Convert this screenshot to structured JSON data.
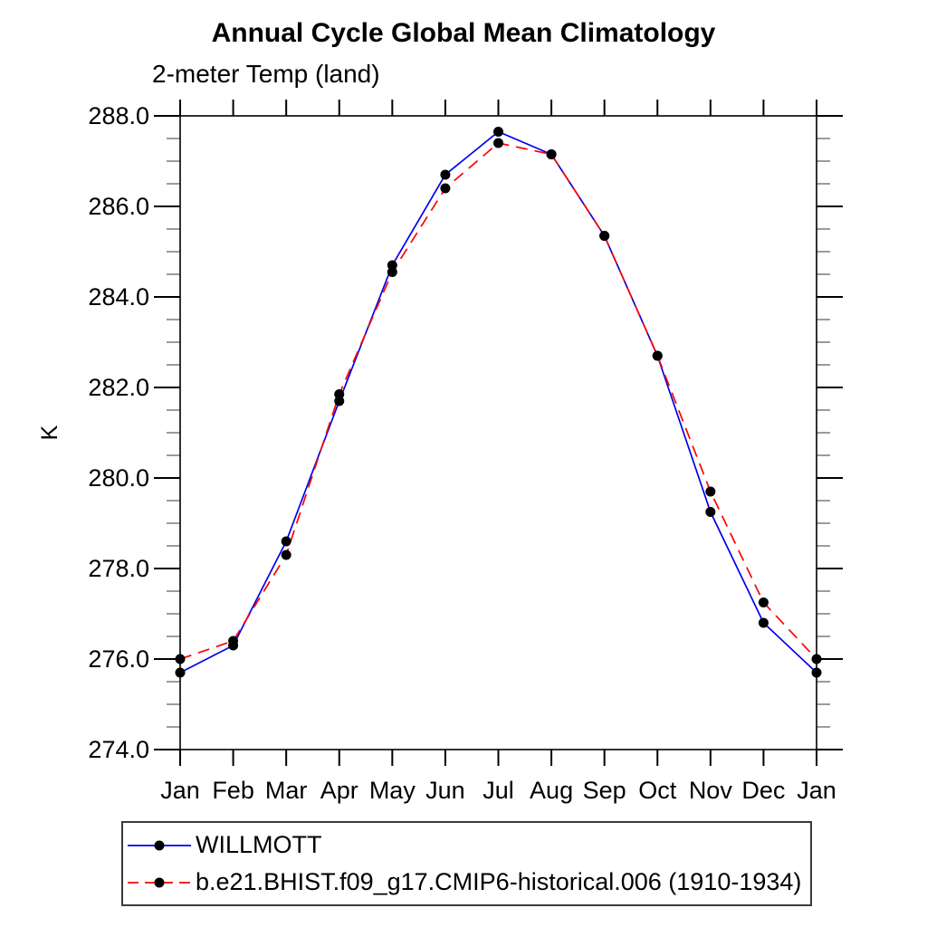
{
  "header": {
    "title": "Annual Cycle Global Mean Climatology",
    "subtitle": "2-meter Temp (land)"
  },
  "chart_data": {
    "type": "line",
    "title": "Annual Cycle Global Mean Climatology",
    "subtitle": "2-meter Temp (land)",
    "xlabel": "",
    "ylabel": "K",
    "categories": [
      "Jan",
      "Feb",
      "Mar",
      "Apr",
      "May",
      "Jun",
      "Jul",
      "Aug",
      "Sep",
      "Oct",
      "Nov",
      "Dec",
      "Jan"
    ],
    "series": [
      {
        "name": "WILLMOTT",
        "color": "#0000ee",
        "style": "solid",
        "marker": "circle",
        "marker_color": "#000000",
        "values": [
          275.7,
          276.3,
          278.6,
          281.7,
          284.7,
          286.7,
          287.65,
          287.15,
          285.35,
          282.7,
          279.25,
          276.8,
          275.7
        ]
      },
      {
        "name": "b.e21.BHIST.f09_g17.CMIP6-historical.006 (1910-1934)",
        "color": "#ff0000",
        "style": "dashed",
        "marker": "circle",
        "marker_color": "#000000",
        "values": [
          276.0,
          276.4,
          278.3,
          281.85,
          284.55,
          286.4,
          287.4,
          287.15,
          285.35,
          282.7,
          279.7,
          277.25,
          276.0
        ]
      }
    ],
    "ylim": [
      274.0,
      288.0
    ],
    "ytick_step": 2.0,
    "ytick_minor_step": 0.5,
    "ytick_labels": [
      "274.0",
      "276.0",
      "278.0",
      "280.0",
      "282.0",
      "284.0",
      "286.0",
      "288.0"
    ],
    "grid": false,
    "legend_position": "bottom-left"
  },
  "legend": {
    "items": [
      {
        "label": "WILLMOTT"
      },
      {
        "label": "b.e21.BHIST.f09_g17.CMIP6-historical.006 (1910-1934)"
      }
    ]
  }
}
